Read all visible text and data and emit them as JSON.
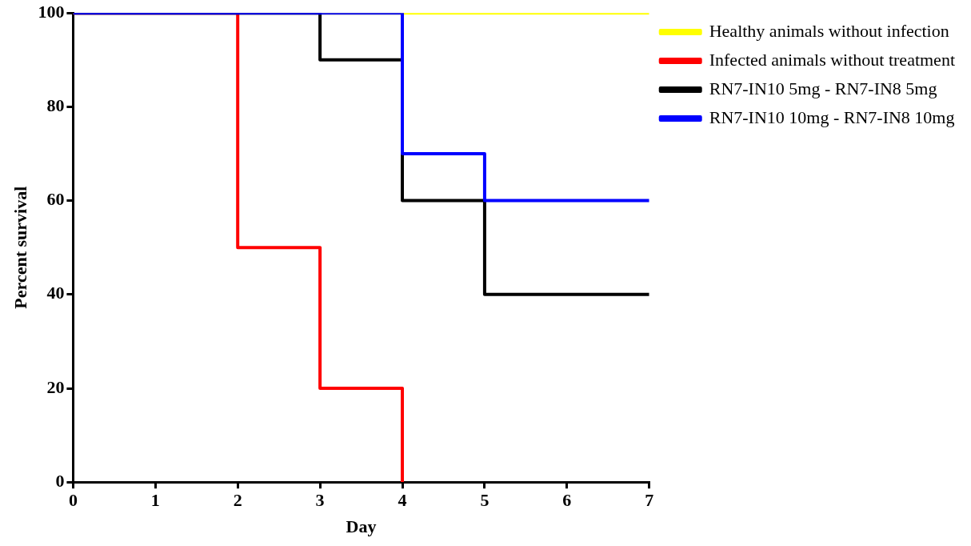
{
  "chart_data": {
    "type": "step",
    "xlabel": "Day",
    "ylabel": "Percent survival",
    "xlim": [
      0,
      7
    ],
    "xticks": [
      0,
      1,
      2,
      3,
      4,
      5,
      6,
      7
    ],
    "ylim": [
      0,
      100
    ],
    "yticks": [
      0,
      20,
      40,
      60,
      80,
      100
    ],
    "grid": false,
    "legend": "top right",
    "marker": "none",
    "line_style": "solid",
    "series": [
      {
        "name": "Healthy animals without infection",
        "color": "#ffff00",
        "x": [
          0,
          7
        ],
        "values": [
          100,
          100
        ]
      },
      {
        "name": "Infected animals without treatment",
        "color": "#ff0000",
        "x": [
          0,
          2,
          3,
          4
        ],
        "values": [
          100,
          50,
          20,
          0
        ]
      },
      {
        "name": "RN7-IN10 5mg - RN7-IN8 5mg",
        "color": "#000000",
        "x": [
          0,
          3,
          4,
          5,
          7
        ],
        "values": [
          100,
          90,
          60,
          40,
          40
        ]
      },
      {
        "name": "RN7-IN10 10mg - RN7-IN8 10mg",
        "color": "#0000ff",
        "x": [
          0,
          4,
          5,
          7
        ],
        "values": [
          100,
          70,
          60,
          60
        ]
      }
    ]
  }
}
